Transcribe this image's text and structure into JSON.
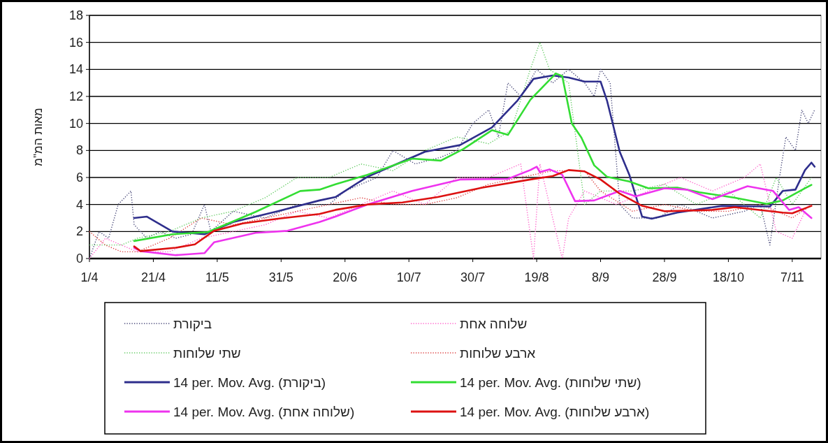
{
  "chart_data": {
    "type": "line",
    "ylabel": "מאות המ\"מ",
    "xlim": [
      "--04-01",
      "--11-16"
    ],
    "ylim": [
      0,
      18
    ],
    "xticks": [
      {
        "value": "--04-01",
        "label": "1/4"
      },
      {
        "value": "--04-21",
        "label": "21/4"
      },
      {
        "value": "--05-11",
        "label": "11/5"
      },
      {
        "value": "--05-31",
        "label": "31/5"
      },
      {
        "value": "--06-20",
        "label": "20/6"
      },
      {
        "value": "--07-10",
        "label": "10/7"
      },
      {
        "value": "--07-30",
        "label": "30/7"
      },
      {
        "value": "--08-19",
        "label": "19/8"
      },
      {
        "value": "--09-08",
        "label": "8/9"
      },
      {
        "value": "--09-28",
        "label": "28/9"
      },
      {
        "value": "--10-18",
        "label": "18/10"
      },
      {
        "value": "--11-07",
        "label": "7/11"
      }
    ],
    "yticks": [
      0,
      2,
      4,
      6,
      8,
      10,
      12,
      14,
      16,
      18
    ],
    "grid": "y",
    "legend": "bottom",
    "series": [
      {
        "name": "ביקורת",
        "color": "#4a4a7a",
        "line_style": "dotted",
        "x": [
          "--04-01",
          "--04-04",
          "--04-07",
          "--04-10",
          "--04-12",
          "--04-14",
          "--04-15",
          "--04-19",
          "--04-23",
          "--04-28",
          "--05-03",
          "--05-07",
          "--05-09",
          "--05-16",
          "--05-26",
          "--06-05",
          "--06-15",
          "--06-20",
          "--06-30",
          "--07-05",
          "--07-12",
          "--07-20",
          "--07-25",
          "--07-30",
          "--08-04",
          "--08-07",
          "--08-10",
          "--08-14",
          "--08-19",
          "--08-24",
          "--08-29",
          "--09-03",
          "--09-06",
          "--09-08",
          "--09-11",
          "--09-14",
          "--09-18",
          "--09-26",
          "--10-03",
          "--10-13",
          "--10-23",
          "--10-28",
          "--10-31",
          "--11-03",
          "--11-05",
          "--11-08",
          "--11-10",
          "--11-12",
          "--11-14"
        ],
        "values": [
          0,
          2,
          1.5,
          4,
          4.5,
          5,
          2.5,
          1.5,
          2,
          1.5,
          1.8,
          4,
          2,
          3.5,
          3,
          4,
          4,
          5,
          6,
          8,
          7,
          7.5,
          8,
          10,
          11,
          9,
          13,
          12,
          14,
          13,
          14,
          13,
          12,
          14,
          13,
          4,
          3,
          3,
          4,
          3,
          3.5,
          4,
          1,
          6,
          9,
          8,
          11,
          10,
          11
        ]
      },
      {
        "name": "שלוחה אחת",
        "color": "#ff66cc",
        "line_style": "dotted",
        "x": [
          "--04-01",
          "--04-06",
          "--04-11",
          "--04-16",
          "--04-26",
          "--05-06",
          "--05-16",
          "--05-26",
          "--06-05",
          "--06-15",
          "--06-25",
          "--07-05",
          "--07-15",
          "--07-25",
          "--08-04",
          "--08-14",
          "--08-18",
          "--08-20",
          "--08-24",
          "--08-27",
          "--08-29",
          "--09-03",
          "--09-13",
          "--09-23",
          "--10-03",
          "--10-13",
          "--10-23",
          "--10-28",
          "--11-02",
          "--11-07",
          "--11-12"
        ],
        "values": [
          0,
          1.5,
          1,
          0.5,
          0.5,
          1.5,
          2,
          2.5,
          3.5,
          3,
          4,
          5,
          4,
          6,
          6,
          7,
          0,
          7,
          3,
          0,
          3,
          5,
          4,
          5,
          6,
          5,
          6,
          7,
          2,
          1.5,
          4
        ]
      },
      {
        "name": "שתי שלוחות",
        "color": "#66cc66",
        "line_style": "dotted",
        "x": [
          "--04-01",
          "--04-11",
          "--04-16",
          "--04-26",
          "--05-06",
          "--05-16",
          "--05-26",
          "--06-05",
          "--06-15",
          "--06-25",
          "--07-05",
          "--07-15",
          "--07-25",
          "--08-04",
          "--08-11",
          "--08-17",
          "--08-20",
          "--08-23",
          "--08-29",
          "--09-03",
          "--09-08",
          "--09-18",
          "--09-28",
          "--10-08",
          "--10-18",
          "--10-28",
          "--11-02",
          "--11-07",
          "--11-13"
        ],
        "values": [
          1,
          1,
          1.5,
          2,
          3,
          3.5,
          4.5,
          6,
          6,
          7,
          6.5,
          8,
          9,
          8.5,
          9.5,
          14,
          16,
          14,
          13,
          4,
          5,
          5,
          5.5,
          4,
          5,
          3,
          6,
          4,
          6
        ]
      },
      {
        "name": "ארבע שלוחות",
        "color": "#dd4444",
        "line_style": "dotted",
        "x": [
          "--04-01",
          "--04-06",
          "--04-11",
          "--04-16",
          "--04-26",
          "--05-06",
          "--05-16",
          "--05-26",
          "--06-05",
          "--06-15",
          "--06-25",
          "--07-05",
          "--07-15",
          "--07-25",
          "--08-04",
          "--08-14",
          "--08-24",
          "--09-03",
          "--09-08",
          "--09-18",
          "--09-28",
          "--10-08",
          "--10-18",
          "--10-28",
          "--11-07",
          "--11-13"
        ],
        "values": [
          2,
          1,
          0.5,
          0.5,
          1.5,
          3,
          2.5,
          3,
          3.5,
          4,
          4.5,
          4,
          4,
          4.5,
          5.5,
          6,
          6.5,
          6.5,
          5,
          3.5,
          4,
          3.5,
          3.5,
          4,
          3,
          4
        ]
      },
      {
        "name": "14 per. Mov. Avg. (ביקורת)",
        "color": "#2e2e8c",
        "line_style": "solid",
        "x": [
          "--04-15",
          "--04-19",
          "--04-27",
          "--05-07",
          "--05-16",
          "--05-30",
          "--06-12",
          "--06-17",
          "--06-27",
          "--07-15",
          "--07-26",
          "--08-05",
          "--08-13",
          "--08-18",
          "--08-24",
          "--08-29",
          "--09-03",
          "--09-08",
          "--09-10",
          "--09-14",
          "--09-17",
          "--09-21",
          "--09-24",
          "--10-02",
          "--10-16",
          "--10-31",
          "--11-04",
          "--11-08",
          "--11-11",
          "--11-13",
          "--11-14"
        ],
        "values": [
          3.0,
          3.1,
          2.0,
          1.8,
          2.7,
          3.5,
          4.3,
          4.55,
          6.05,
          7.9,
          8.4,
          9.7,
          11.7,
          13.3,
          13.55,
          13.4,
          13.1,
          13.1,
          11.7,
          7.9,
          6.2,
          3.1,
          2.95,
          3.4,
          3.9,
          3.85,
          5.0,
          5.1,
          6.55,
          7.1,
          6.8
        ]
      },
      {
        "name": "14 per. Mov. Avg. (שתי שלוחות)",
        "color": "#33dd33",
        "line_style": "solid",
        "x": [
          "--04-15",
          "--04-27",
          "--05-08",
          "--05-23",
          "--06-06",
          "--06-12",
          "--06-17",
          "--06-27",
          "--07-11",
          "--07-20",
          "--07-27",
          "--08-05",
          "--08-10",
          "--08-17",
          "--08-25",
          "--08-27",
          "--08-30",
          "--09-02",
          "--09-06",
          "--09-10",
          "--09-17",
          "--09-23",
          "--10-02",
          "--10-09",
          "--10-20",
          "--10-30",
          "--11-04",
          "--11-11",
          "--11-13"
        ],
        "values": [
          1.3,
          1.8,
          1.95,
          3.45,
          5.0,
          5.1,
          5.5,
          6.2,
          7.4,
          7.25,
          8.1,
          9.5,
          9.15,
          11.75,
          13.7,
          13.5,
          10.0,
          8.95,
          6.9,
          6.05,
          5.7,
          5.2,
          5.25,
          4.9,
          4.5,
          4.05,
          4.3,
          5.2,
          5.45
        ]
      },
      {
        "name": "14 per. Mov. Avg. (שלוחה אחת)",
        "color": "#ee33ee",
        "line_style": "solid",
        "x": [
          "--04-15",
          "--04-17",
          "--04-28",
          "--05-07",
          "--05-10",
          "--05-23",
          "--06-02",
          "--06-12",
          "--06-17",
          "--06-27",
          "--07-11",
          "--07-26",
          "--08-10",
          "--08-17",
          "--08-19",
          "--08-20",
          "--08-23",
          "--08-27",
          "--08-31",
          "--09-06",
          "--09-14",
          "--09-19",
          "--09-28",
          "--10-05",
          "--10-13",
          "--10-24",
          "--11-01",
          "--11-06",
          "--11-09",
          "--11-13"
        ],
        "values": [
          0.8,
          0.55,
          0.25,
          0.4,
          1.2,
          1.9,
          2.05,
          2.7,
          3.1,
          4.0,
          5.0,
          5.85,
          5.9,
          6.55,
          6.8,
          6.4,
          6.6,
          6.2,
          4.25,
          4.3,
          5.0,
          4.6,
          5.2,
          5.1,
          4.4,
          5.35,
          5.0,
          3.6,
          3.8,
          3.0
        ]
      },
      {
        "name": "14 per. Mov. Avg. (ארבע שלוחות)",
        "color": "#dd1111",
        "line_style": "solid",
        "x": [
          "--04-15",
          "--04-17",
          "--04-28",
          "--05-04",
          "--05-10",
          "--05-19",
          "--05-30",
          "--06-12",
          "--06-17",
          "--06-27",
          "--07-08",
          "--07-19",
          "--08-02",
          "--08-17",
          "--08-24",
          "--08-29",
          "--09-03",
          "--09-08",
          "--09-14",
          "--09-21",
          "--09-28",
          "--10-13",
          "--10-20",
          "--11-04",
          "--11-07",
          "--11-13"
        ],
        "values": [
          0.9,
          0.55,
          0.8,
          1.05,
          2.05,
          2.6,
          2.95,
          3.3,
          3.6,
          4.0,
          4.15,
          4.55,
          5.25,
          5.85,
          6.1,
          6.55,
          6.45,
          5.85,
          4.8,
          3.9,
          3.5,
          3.6,
          3.8,
          3.4,
          3.35,
          3.9
        ]
      }
    ]
  }
}
